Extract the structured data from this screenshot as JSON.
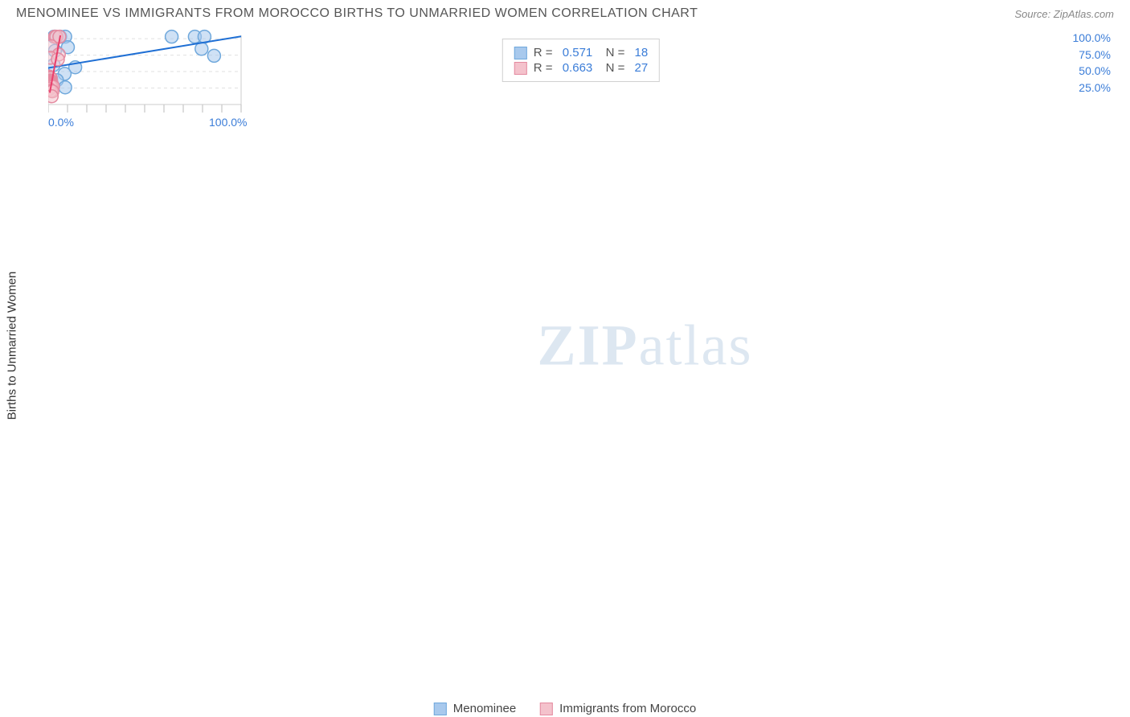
{
  "title": "MENOMINEE VS IMMIGRANTS FROM MOROCCO BIRTHS TO UNMARRIED WOMEN CORRELATION CHART",
  "source": "Source: ZipAtlas.com",
  "yaxis_label": "Births to Unmarried Women",
  "watermark_bold": "ZIP",
  "watermark_light": "atlas",
  "chart": {
    "type": "scatter",
    "xlim": [
      0,
      100
    ],
    "ylim": [
      0,
      105
    ],
    "xticks": [
      0,
      100
    ],
    "xtick_labels": [
      "0.0%",
      "100.0%"
    ],
    "yticks": [
      25,
      50,
      75,
      100
    ],
    "ytick_labels": [
      "25.0%",
      "50.0%",
      "75.0%",
      "100.0%"
    ],
    "grid_color": "#e0e0e0",
    "axis_color": "#cccccc",
    "tick_color": "#bbbbbb",
    "background_color": "#ffffff",
    "marker_radius": 8,
    "marker_stroke_width": 1.5,
    "line_width": 2,
    "series": [
      {
        "name": "Menominee",
        "color_fill": "#a8c9ed",
        "color_stroke": "#6fa8dc",
        "line_color": "#1f6fd4",
        "r_value": "0.571",
        "n_value": "18",
        "points": [
          [
            3.0,
            103.0
          ],
          [
            3.5,
            103.0
          ],
          [
            6.2,
            103.0
          ],
          [
            8.8,
            103.0
          ],
          [
            64.0,
            103.0
          ],
          [
            76.0,
            103.0
          ],
          [
            81.0,
            103.0
          ],
          [
            10.2,
            87.0
          ],
          [
            3.5,
            81.5
          ],
          [
            79.5,
            84.5
          ],
          [
            86.0,
            74.0
          ],
          [
            2.8,
            60.0
          ],
          [
            14.0,
            56.5
          ],
          [
            8.5,
            46.5
          ],
          [
            1.5,
            38.5
          ],
          [
            4.5,
            37.0
          ],
          [
            1.2,
            33.5
          ],
          [
            8.8,
            26.0
          ]
        ],
        "trend": {
          "x1": 0,
          "y1": 55.5,
          "x2": 100,
          "y2": 103.5
        }
      },
      {
        "name": "Immigrants from Morocco",
        "color_fill": "#f4c2cc",
        "color_stroke": "#e48aa0",
        "line_color": "#ea3e6b",
        "r_value": "0.663",
        "n_value": "27",
        "points": [
          [
            3.5,
            103.0
          ],
          [
            4.2,
            103.0
          ],
          [
            5.8,
            103.0
          ],
          [
            1.5,
            88.5
          ],
          [
            5.5,
            76.0
          ],
          [
            1.2,
            71.0
          ],
          [
            5.0,
            68.5
          ],
          [
            0.5,
            42.5
          ],
          [
            1.0,
            41.0
          ],
          [
            1.3,
            40.0
          ],
          [
            1.0,
            36.5
          ],
          [
            1.5,
            35.5
          ],
          [
            0.8,
            34.5
          ],
          [
            1.2,
            34.0
          ],
          [
            0.5,
            32.5
          ],
          [
            1.6,
            32.0
          ],
          [
            0.8,
            31.5
          ],
          [
            1.8,
            31.0
          ],
          [
            0.6,
            30.0
          ],
          [
            2.2,
            29.0
          ],
          [
            1.0,
            28.5
          ],
          [
            1.5,
            27.5
          ],
          [
            2.5,
            27.0
          ],
          [
            0.5,
            23.5
          ],
          [
            1.5,
            21.0
          ],
          [
            2.2,
            20.0
          ],
          [
            1.8,
            12.5
          ]
        ],
        "trend": {
          "x1": 0.8,
          "y1": 18,
          "x2": 6.3,
          "y2": 105
        }
      }
    ]
  },
  "xtick_label_color": "#3b7dd8",
  "ytick_label_color": "#3b7dd8"
}
